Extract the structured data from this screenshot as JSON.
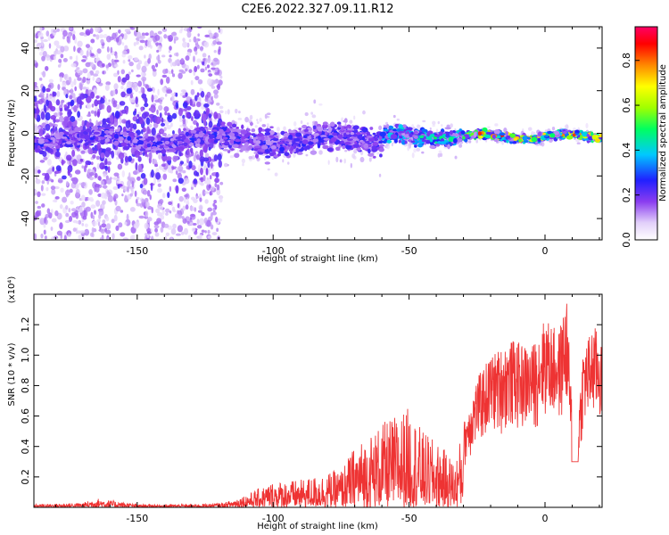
{
  "figure": {
    "title": "C2E6.2022.327.09.11.R12"
  },
  "chart_data": [
    {
      "type": "heatmap",
      "title": "",
      "xlabel": "Height of straight line (km)",
      "ylabel": "Frequency (Hz)",
      "xlim": [
        -188,
        21
      ],
      "ylim": [
        -50,
        50
      ],
      "xticks": [
        -150,
        -100,
        -50,
        0
      ],
      "xtick_labels": [
        "-150",
        "-100",
        "-50",
        "0"
      ],
      "yticks": [
        -40,
        -20,
        0,
        20,
        40
      ],
      "ytick_labels": [
        "-40",
        "-20",
        "0",
        "20",
        "40"
      ],
      "colormap": [
        "#ffffff",
        "#d9c4f7",
        "#8a3cf0",
        "#1f1fff",
        "#00ffff",
        "#00ff00",
        "#ffff00",
        "#ff0000",
        "#ff0066"
      ],
      "colorbar": {
        "label": "Normalized spectral amplitude",
        "range": [
          0,
          0.95
        ],
        "ticks": [
          0.0,
          0.2,
          0.4,
          0.6,
          0.8
        ],
        "tick_labels": [
          "0.0",
          "0.2",
          "0.4",
          "0.6",
          "0.8"
        ]
      },
      "description_regions": [
        {
          "x_range": [
            -188,
            -119
          ],
          "freq_spread": 50,
          "peak_amplitude": 0.35
        },
        {
          "x_range": [
            -119,
            -60
          ],
          "freq_spread": 10,
          "peak_amplitude": 0.3
        },
        {
          "x_range": [
            -60,
            -30
          ],
          "freq_spread": 6,
          "peak_amplitude": 0.55
        },
        {
          "x_range": [
            -30,
            21
          ],
          "freq_spread": 3,
          "peak_amplitude": 0.95
        }
      ]
    },
    {
      "type": "line",
      "title": "",
      "xlabel": "Height of straight line (km)",
      "ylabel": "SNR (10 * v/v)",
      "multiplier_label": "(x10⁴)",
      "xlim": [
        -188,
        21
      ],
      "ylim": [
        0,
        1.4
      ],
      "xticks": [
        -150,
        -100,
        -50,
        0
      ],
      "xtick_labels": [
        "-150",
        "-100",
        "-50",
        "0"
      ],
      "yticks": [
        0.2,
        0.4,
        0.6,
        0.8,
        1.0,
        1.2
      ],
      "ytick_labels": [
        "0.2",
        "0.4",
        "0.6",
        "0.8",
        "1.0",
        "1.2"
      ],
      "line_color": "#ee3333",
      "envelope": [
        [
          -188,
          0.02
        ],
        [
          -170,
          0.03
        ],
        [
          -165,
          0.06
        ],
        [
          -150,
          0.02
        ],
        [
          -130,
          0.02
        ],
        [
          -118,
          0.03
        ],
        [
          -108,
          0.1
        ],
        [
          -100,
          0.17
        ],
        [
          -90,
          0.18
        ],
        [
          -75,
          0.25
        ],
        [
          -70,
          0.4
        ],
        [
          -60,
          0.55
        ],
        [
          -50,
          0.66
        ],
        [
          -45,
          0.5
        ],
        [
          -38,
          0.4
        ],
        [
          -33,
          0.3
        ],
        [
          -30,
          0.55
        ],
        [
          -25,
          0.85
        ],
        [
          -20,
          1.0
        ],
        [
          -12,
          1.1
        ],
        [
          -5,
          1.05
        ],
        [
          0,
          1.25
        ],
        [
          5,
          1.15
        ],
        [
          8,
          1.38
        ],
        [
          11,
          0.3
        ],
        [
          14,
          1.05
        ],
        [
          18,
          1.2
        ],
        [
          21,
          1.1
        ]
      ]
    }
  ]
}
